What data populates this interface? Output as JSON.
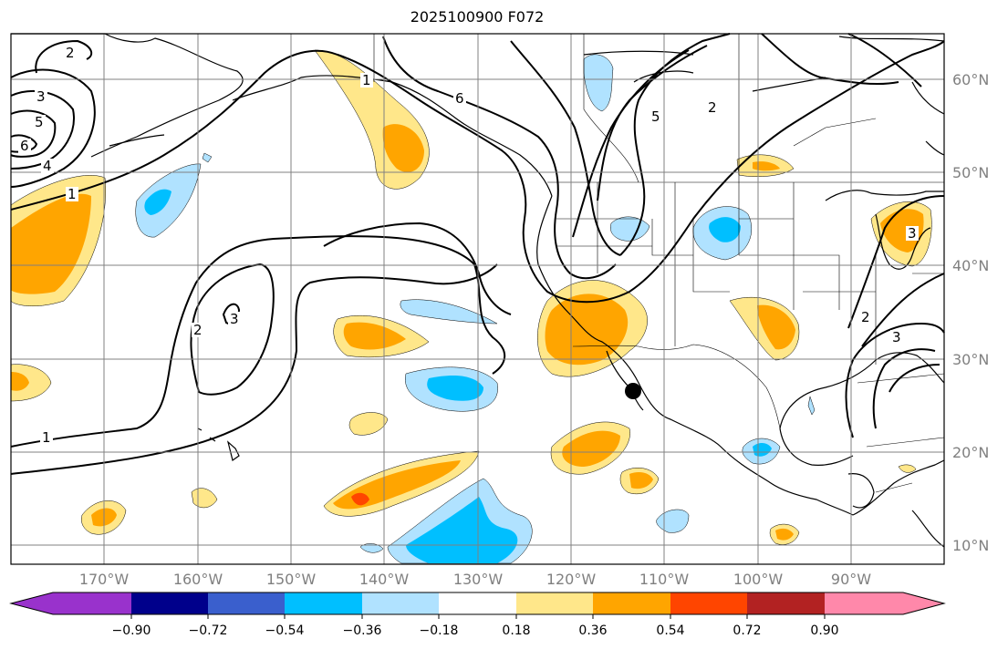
{
  "title": "2025100900 F072",
  "map": {
    "projection": "cylindrical",
    "lat_labels": [
      "60°N",
      "50°N",
      "40°N",
      "30°N",
      "20°N",
      "10°N"
    ],
    "lon_labels": [
      "170°W",
      "160°W",
      "150°W",
      "140°W",
      "130°W",
      "120°W",
      "110°W",
      "100°W",
      "90°W"
    ],
    "contour_labels": [
      "2",
      "3",
      "5",
      "6",
      "4",
      "1",
      "6",
      "5",
      "2",
      "2",
      "3",
      "1",
      "2",
      "3",
      "3",
      "1"
    ],
    "marker": "black-dot",
    "land_color": "#ffffff",
    "coast_color": "#000000",
    "grid_color": "#808080"
  },
  "colorbar": {
    "ticks": [
      "−0.90",
      "−0.72",
      "−0.54",
      "−0.36",
      "−0.18",
      "0.18",
      "0.36",
      "0.54",
      "0.72",
      "0.90"
    ],
    "colors": [
      "#9932cc",
      "#00008b",
      "#3a5fcd",
      "#00bfff",
      "#b0e2ff",
      "#ffffff",
      "#ffe78a",
      "#ffa500",
      "#ff4500",
      "#b22222",
      "#ff88aa"
    ],
    "extend": "both"
  }
}
